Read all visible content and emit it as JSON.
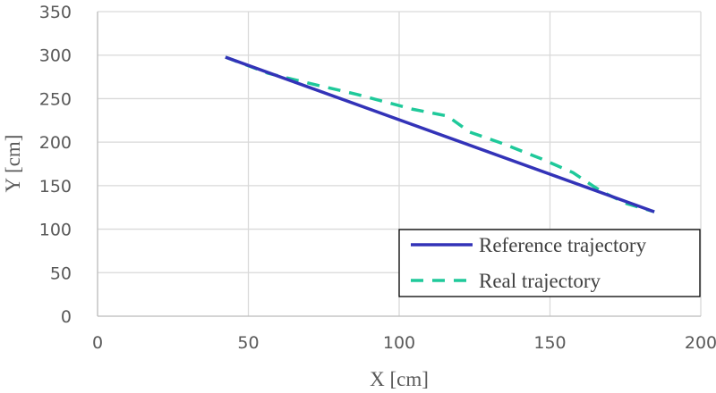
{
  "chart_data": {
    "type": "line",
    "title": "",
    "xlabel": "X [cm]",
    "ylabel": "Y [cm]",
    "xlim": [
      0,
      200
    ],
    "ylim": [
      0,
      350
    ],
    "x_ticks": [
      0,
      50,
      100,
      150,
      200
    ],
    "y_ticks": [
      0,
      50,
      100,
      150,
      200,
      250,
      300,
      350
    ],
    "grid": true,
    "legend_position": "lower right (inside plot)",
    "series": [
      {
        "name": "Reference trajectory",
        "color": "#3333b8",
        "style": "solid",
        "x": [
          42.4,
          184.6
        ],
        "y": [
          297.7,
          120.0
        ]
      },
      {
        "name": "Real trajectory",
        "color": "#1fc99a",
        "style": "dashed",
        "x": [
          42.4,
          56.7,
          68.5,
          86.3,
          104.2,
          116.0,
          123.4,
          133.8,
          147.2,
          157.6,
          165.0,
          168.0,
          175.4,
          184.6
        ],
        "y": [
          297.7,
          279.0,
          269.0,
          254.6,
          238.0,
          230.0,
          211.5,
          199.0,
          180.7,
          165.0,
          148.0,
          141.7,
          129.4,
          120.0
        ]
      }
    ]
  },
  "labels": {
    "xlabel": "X [cm]",
    "ylabel": "Y [cm]",
    "legend": [
      "Reference trajectory",
      "Real trajectory"
    ]
  },
  "colors": {
    "grid": "#d9d9d9",
    "reference": "#3333b8",
    "real": "#1fc99a",
    "tick_text": "#595959"
  }
}
